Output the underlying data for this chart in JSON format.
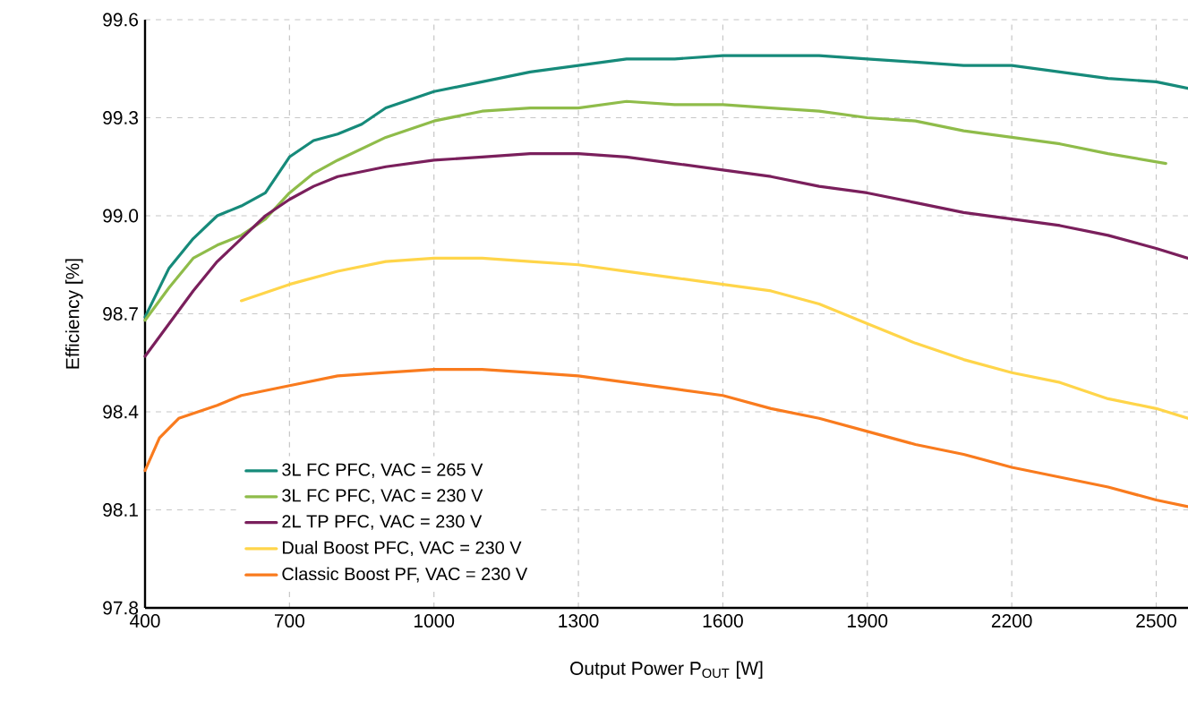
{
  "chart_data": {
    "type": "line",
    "xlabel": "Output Power P$_{OUT}$ [W]",
    "ylabel": "Efficiency [%]",
    "xlim": [
      400,
      2566
    ],
    "ylim": [
      97.8,
      99.6
    ],
    "xticks": [
      400,
      700,
      1000,
      1300,
      1600,
      1900,
      2200,
      2500
    ],
    "yticks": [
      {
        "value": 97.8,
        "label": "97.8"
      },
      {
        "value": 98.1,
        "label": "98.1"
      },
      {
        "value": 98.4,
        "label": "98.4"
      },
      {
        "value": 98.7,
        "label": "98.7"
      },
      {
        "value": 99.0,
        "label": "99.0"
      },
      {
        "value": 99.3,
        "label": "99.3"
      },
      {
        "value": 99.6,
        "label": "99.6"
      }
    ],
    "grid": true,
    "legend": "bottom left",
    "marker": "none",
    "line_style": "solid",
    "series": [
      {
        "name": "3L FC PFC, VAC = 265 V",
        "color": "#168a7a",
        "x": [
          400,
          450,
          500,
          550,
          600,
          650,
          700,
          750,
          800,
          850,
          900,
          1000,
          1100,
          1200,
          1300,
          1400,
          1500,
          1600,
          1700,
          1800,
          1900,
          2000,
          2100,
          2200,
          2300,
          2400,
          2500,
          2566
        ],
        "values": [
          98.69,
          98.84,
          98.93,
          99.0,
          99.03,
          99.07,
          99.18,
          99.23,
          99.25,
          99.28,
          99.33,
          99.38,
          99.41,
          99.44,
          99.46,
          99.48,
          99.48,
          99.49,
          99.49,
          99.49,
          99.48,
          99.47,
          99.46,
          99.46,
          99.44,
          99.42,
          99.41,
          99.39
        ]
      },
      {
        "name": "3L FC PFC, VAC = 230 V",
        "color": "#8fbc4a",
        "x": [
          400,
          450,
          500,
          550,
          600,
          650,
          700,
          750,
          800,
          900,
          1000,
          1100,
          1200,
          1300,
          1400,
          1500,
          1600,
          1700,
          1800,
          1900,
          2000,
          2100,
          2200,
          2300,
          2400,
          2520
        ],
        "values": [
          98.68,
          98.78,
          98.87,
          98.91,
          98.94,
          98.99,
          99.07,
          99.13,
          99.17,
          99.24,
          99.29,
          99.32,
          99.33,
          99.33,
          99.35,
          99.34,
          99.34,
          99.33,
          99.32,
          99.3,
          99.29,
          99.26,
          99.24,
          99.22,
          99.19,
          99.16
        ]
      },
      {
        "name": "2L TP PFC, VAC = 230 V",
        "color": "#7a1f5c",
        "x": [
          400,
          450,
          500,
          550,
          600,
          650,
          700,
          750,
          800,
          900,
          1000,
          1100,
          1200,
          1300,
          1400,
          1500,
          1600,
          1700,
          1800,
          1900,
          2000,
          2100,
          2200,
          2300,
          2400,
          2500,
          2566
        ],
        "values": [
          98.57,
          98.67,
          98.77,
          98.86,
          98.93,
          99.0,
          99.05,
          99.09,
          99.12,
          99.15,
          99.17,
          99.18,
          99.19,
          99.19,
          99.18,
          99.16,
          99.14,
          99.12,
          99.09,
          99.07,
          99.04,
          99.01,
          98.99,
          98.97,
          98.94,
          98.9,
          98.87
        ]
      },
      {
        "name": "Dual Boost PFC, VAC = 230 V",
        "color": "#ffd54a",
        "x": [
          600,
          700,
          800,
          900,
          1000,
          1100,
          1200,
          1300,
          1400,
          1500,
          1600,
          1700,
          1800,
          1900,
          2000,
          2100,
          2200,
          2300,
          2400,
          2500,
          2566
        ],
        "values": [
          98.74,
          98.79,
          98.83,
          98.86,
          98.87,
          98.87,
          98.86,
          98.85,
          98.83,
          98.81,
          98.79,
          98.77,
          98.73,
          98.67,
          98.61,
          98.56,
          98.52,
          98.49,
          98.44,
          98.41,
          98.38
        ]
      },
      {
        "name": "Classic Boost PF, VAC = 230 V",
        "color": "#f97b1e",
        "x": [
          400,
          430,
          470,
          550,
          600,
          700,
          800,
          900,
          1000,
          1100,
          1200,
          1300,
          1400,
          1500,
          1600,
          1700,
          1800,
          1900,
          2000,
          2100,
          2200,
          2300,
          2400,
          2500,
          2566
        ],
        "values": [
          98.22,
          98.32,
          98.38,
          98.42,
          98.45,
          98.48,
          98.51,
          98.52,
          98.53,
          98.53,
          98.52,
          98.51,
          98.49,
          98.47,
          98.45,
          98.41,
          98.38,
          98.34,
          98.3,
          98.27,
          98.23,
          98.2,
          98.17,
          98.13,
          98.11
        ]
      }
    ]
  }
}
